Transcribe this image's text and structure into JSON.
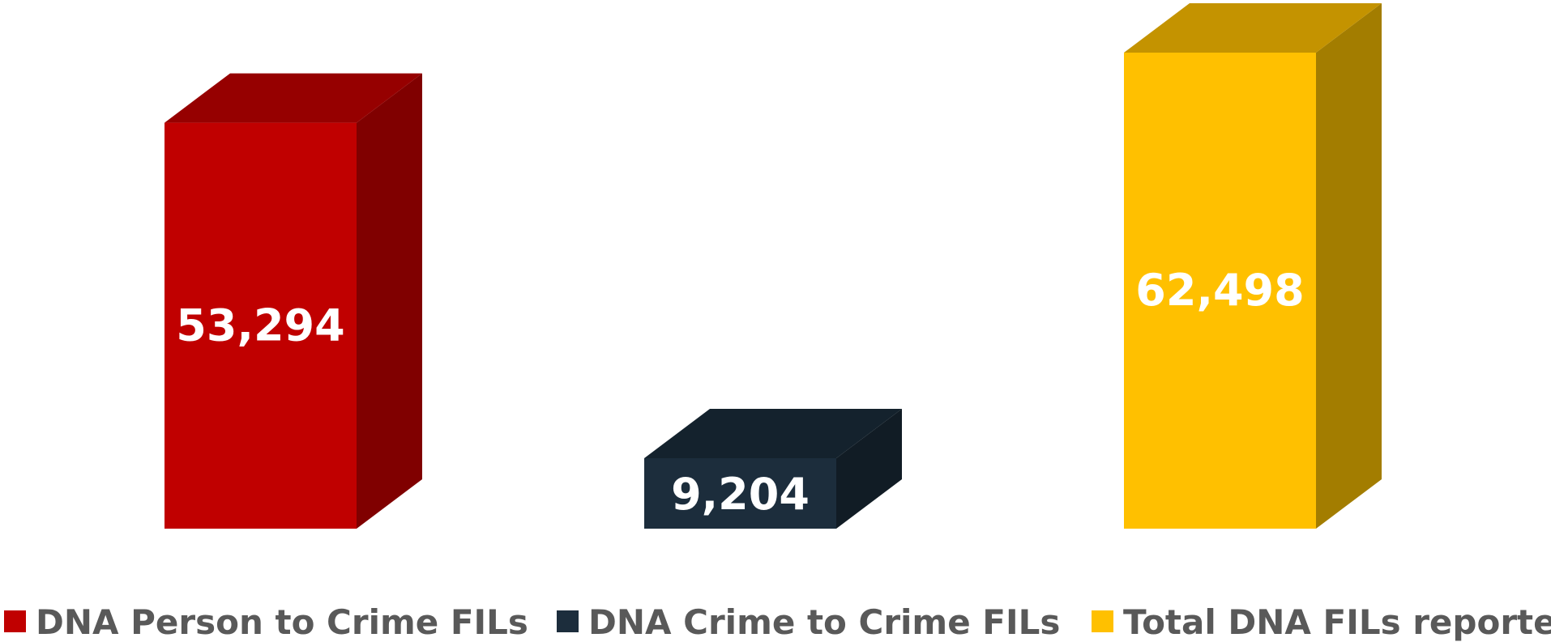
{
  "chart_data": {
    "type": "bar",
    "style": "3d-column",
    "categories": [
      "DNA Person to Crime FILs",
      "DNA Crime to Crime FILs",
      "Total DNA FILs reported"
    ],
    "values": [
      53294,
      9204,
      62498
    ],
    "value_labels": [
      "53,294",
      "9,204",
      "62,498"
    ],
    "colors": {
      "front": [
        "#C00000",
        "#1C2D3C",
        "#FFC000"
      ],
      "top": [
        "#960000",
        "#14222D",
        "#C49300"
      ],
      "side": [
        "#800000",
        "#111C25",
        "#A37D00"
      ]
    },
    "ylim": [
      0,
      62498
    ],
    "grid": false,
    "legend": {
      "position": "bottom",
      "entries": [
        "DNA Person to Crime FILs",
        "DNA Crime to Crime FILs",
        "Total DNA FILs reported"
      ]
    }
  }
}
